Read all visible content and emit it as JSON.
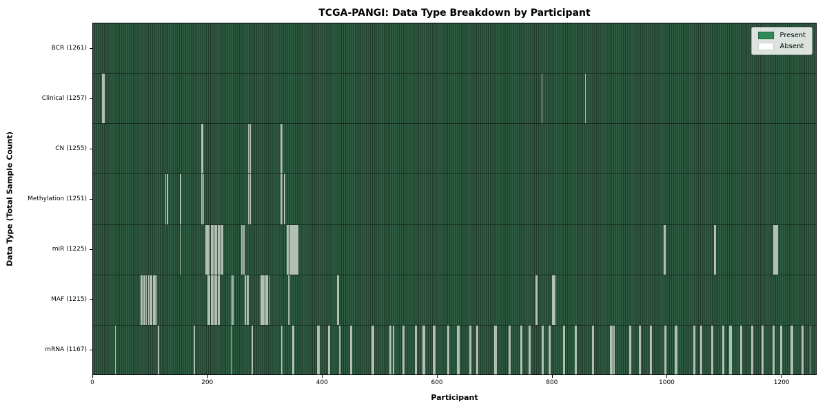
{
  "chart_data": {
    "type": "heatmap",
    "title": "TCGA-PANGI: Data Type Breakdown by Participant",
    "xlabel": "Participant",
    "ylabel": "Data Type (Total Sample Count)",
    "n_participants": 1261,
    "x_ticks": [
      0,
      200,
      400,
      600,
      800,
      1000,
      1200
    ],
    "grid": false,
    "legend": {
      "position": "upper-right",
      "entries": [
        {
          "label": "Present",
          "color": "#2e8b57"
        },
        {
          "label": "Absent",
          "color": "#ffffff"
        }
      ]
    },
    "colors": {
      "present": "#2e8b57",
      "present_texture_light": "#2e5c42",
      "present_texture_dark": "#203a2c",
      "absent": "#ffffff",
      "absent_stripe": "#b2bfb4"
    },
    "rows": [
      {
        "label": "BCR (1261)",
        "data_type": "BCR",
        "total_sample_count": 1261,
        "absent_count": 0,
        "absent_participants": []
      },
      {
        "label": "Clinical (1257)",
        "data_type": "Clinical",
        "total_sample_count": 1257,
        "absent_count": 4,
        "absent_participants": [
          16,
          18,
          782,
          858
        ]
      },
      {
        "label": "CN (1255)",
        "data_type": "CN",
        "total_sample_count": 1255,
        "absent_count": 6,
        "absent_participants": [
          189,
          191,
          270,
          273,
          327,
          330
        ]
      },
      {
        "label": "Methylation (1251)",
        "data_type": "Methylation",
        "total_sample_count": 1251,
        "absent_count": 10,
        "absent_participants": [
          126,
          129,
          152,
          189,
          192,
          270,
          273,
          327,
          330,
          333
        ]
      },
      {
        "label": "miR (1225)",
        "data_type": "miR",
        "total_sample_count": 1225,
        "absent_count": 36,
        "absent_participants": [
          151,
          196,
          198,
          200,
          203,
          205,
          207,
          209,
          211,
          213,
          215,
          217,
          219,
          221,
          223,
          225,
          259,
          262,
          338,
          340,
          342,
          344,
          346,
          348,
          350,
          352,
          354,
          356,
          995,
          997,
          1083,
          1085,
          1187,
          1189,
          1191,
          1193
        ]
      },
      {
        "label": "MAF (1215)",
        "data_type": "MAF",
        "total_sample_count": 1215,
        "absent_count": 46,
        "absent_participants": [
          83,
          85,
          88,
          90,
          92,
          96,
          98,
          100,
          102,
          104,
          106,
          108,
          110,
          199,
          201,
          203,
          205,
          207,
          209,
          211,
          213,
          215,
          217,
          219,
          240,
          243,
          265,
          268,
          270,
          292,
          294,
          296,
          298,
          300,
          302,
          304,
          306,
          340,
          342,
          425,
          427,
          772,
          774,
          801,
          803,
          805
        ]
      },
      {
        "label": "mRNA (1167)",
        "data_type": "mRNA",
        "total_sample_count": 1167,
        "absent_count": 94,
        "absent_participants": [
          38,
          113,
          176,
          240,
          277,
          328,
          330,
          347,
          349,
          391,
          393,
          410,
          412,
          429,
          431,
          448,
          450,
          486,
          488,
          517,
          519,
          523,
          540,
          542,
          561,
          563,
          575,
          577,
          593,
          595,
          618,
          620,
          635,
          637,
          656,
          658,
          668,
          670,
          700,
          702,
          725,
          727,
          745,
          747,
          760,
          762,
          782,
          784,
          794,
          796,
          820,
          822,
          840,
          842,
          870,
          872,
          902,
          904,
          908,
          935,
          937,
          952,
          954,
          971,
          973,
          996,
          998,
          1015,
          1017,
          1047,
          1049,
          1059,
          1061,
          1078,
          1080,
          1097,
          1099,
          1110,
          1112,
          1129,
          1131,
          1148,
          1150,
          1166,
          1168,
          1185,
          1187,
          1198,
          1200,
          1217,
          1219,
          1236,
          1238,
          1250
        ]
      }
    ]
  }
}
